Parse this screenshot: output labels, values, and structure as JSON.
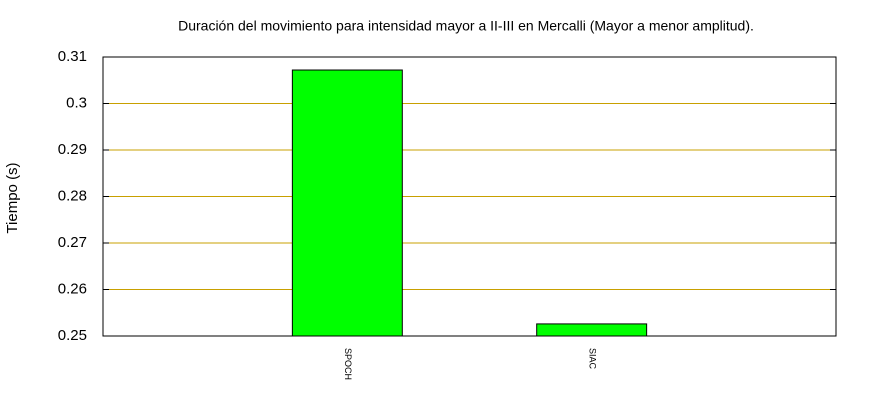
{
  "chart_data": {
    "type": "bar",
    "title": "Duración del movimiento para intensidad mayor a II-III en Mercalli (Mayor a menor amplitud).",
    "y_label": "Tiempo (s)",
    "categories": [
      "SPOCH",
      "SIAC"
    ],
    "values": [
      0.3072,
      0.2526
    ],
    "color": "#00ff00",
    "ylim": [
      0.25,
      0.31
    ],
    "yticks": [
      0.25,
      0.26,
      0.27,
      0.28,
      0.29,
      0.3,
      0.31
    ],
    "grid": true,
    "grid_color": "#c8a000"
  }
}
